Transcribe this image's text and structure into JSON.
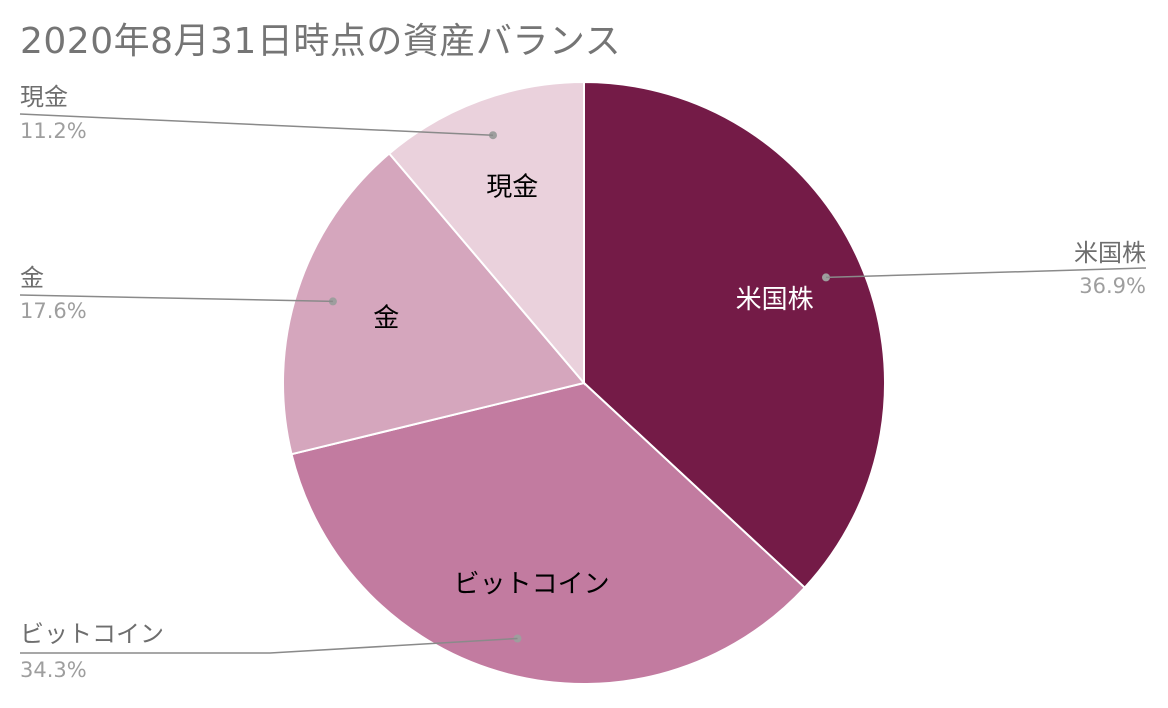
{
  "chart_data": {
    "type": "pie",
    "title": "2020年8月31日時点の資産バランス",
    "slices": [
      {
        "label": "米国株",
        "value": 36.9,
        "display": "36.9%",
        "color": "#741b47",
        "text_color": "#ffffff"
      },
      {
        "label": "ビットコイン",
        "value": 34.3,
        "display": "34.3%",
        "color": "#c27ba0",
        "text_color": "#000000"
      },
      {
        "label": "金",
        "value": 17.6,
        "display": "17.6%",
        "color": "#d5a6bd",
        "text_color": "#000000"
      },
      {
        "label": "現金",
        "value": 11.2,
        "display": "11.2%",
        "color": "#ead1dc",
        "text_color": "#000000"
      }
    ],
    "start": "top, clockwise",
    "legend": "none (outside callout labels with leader lines)"
  }
}
